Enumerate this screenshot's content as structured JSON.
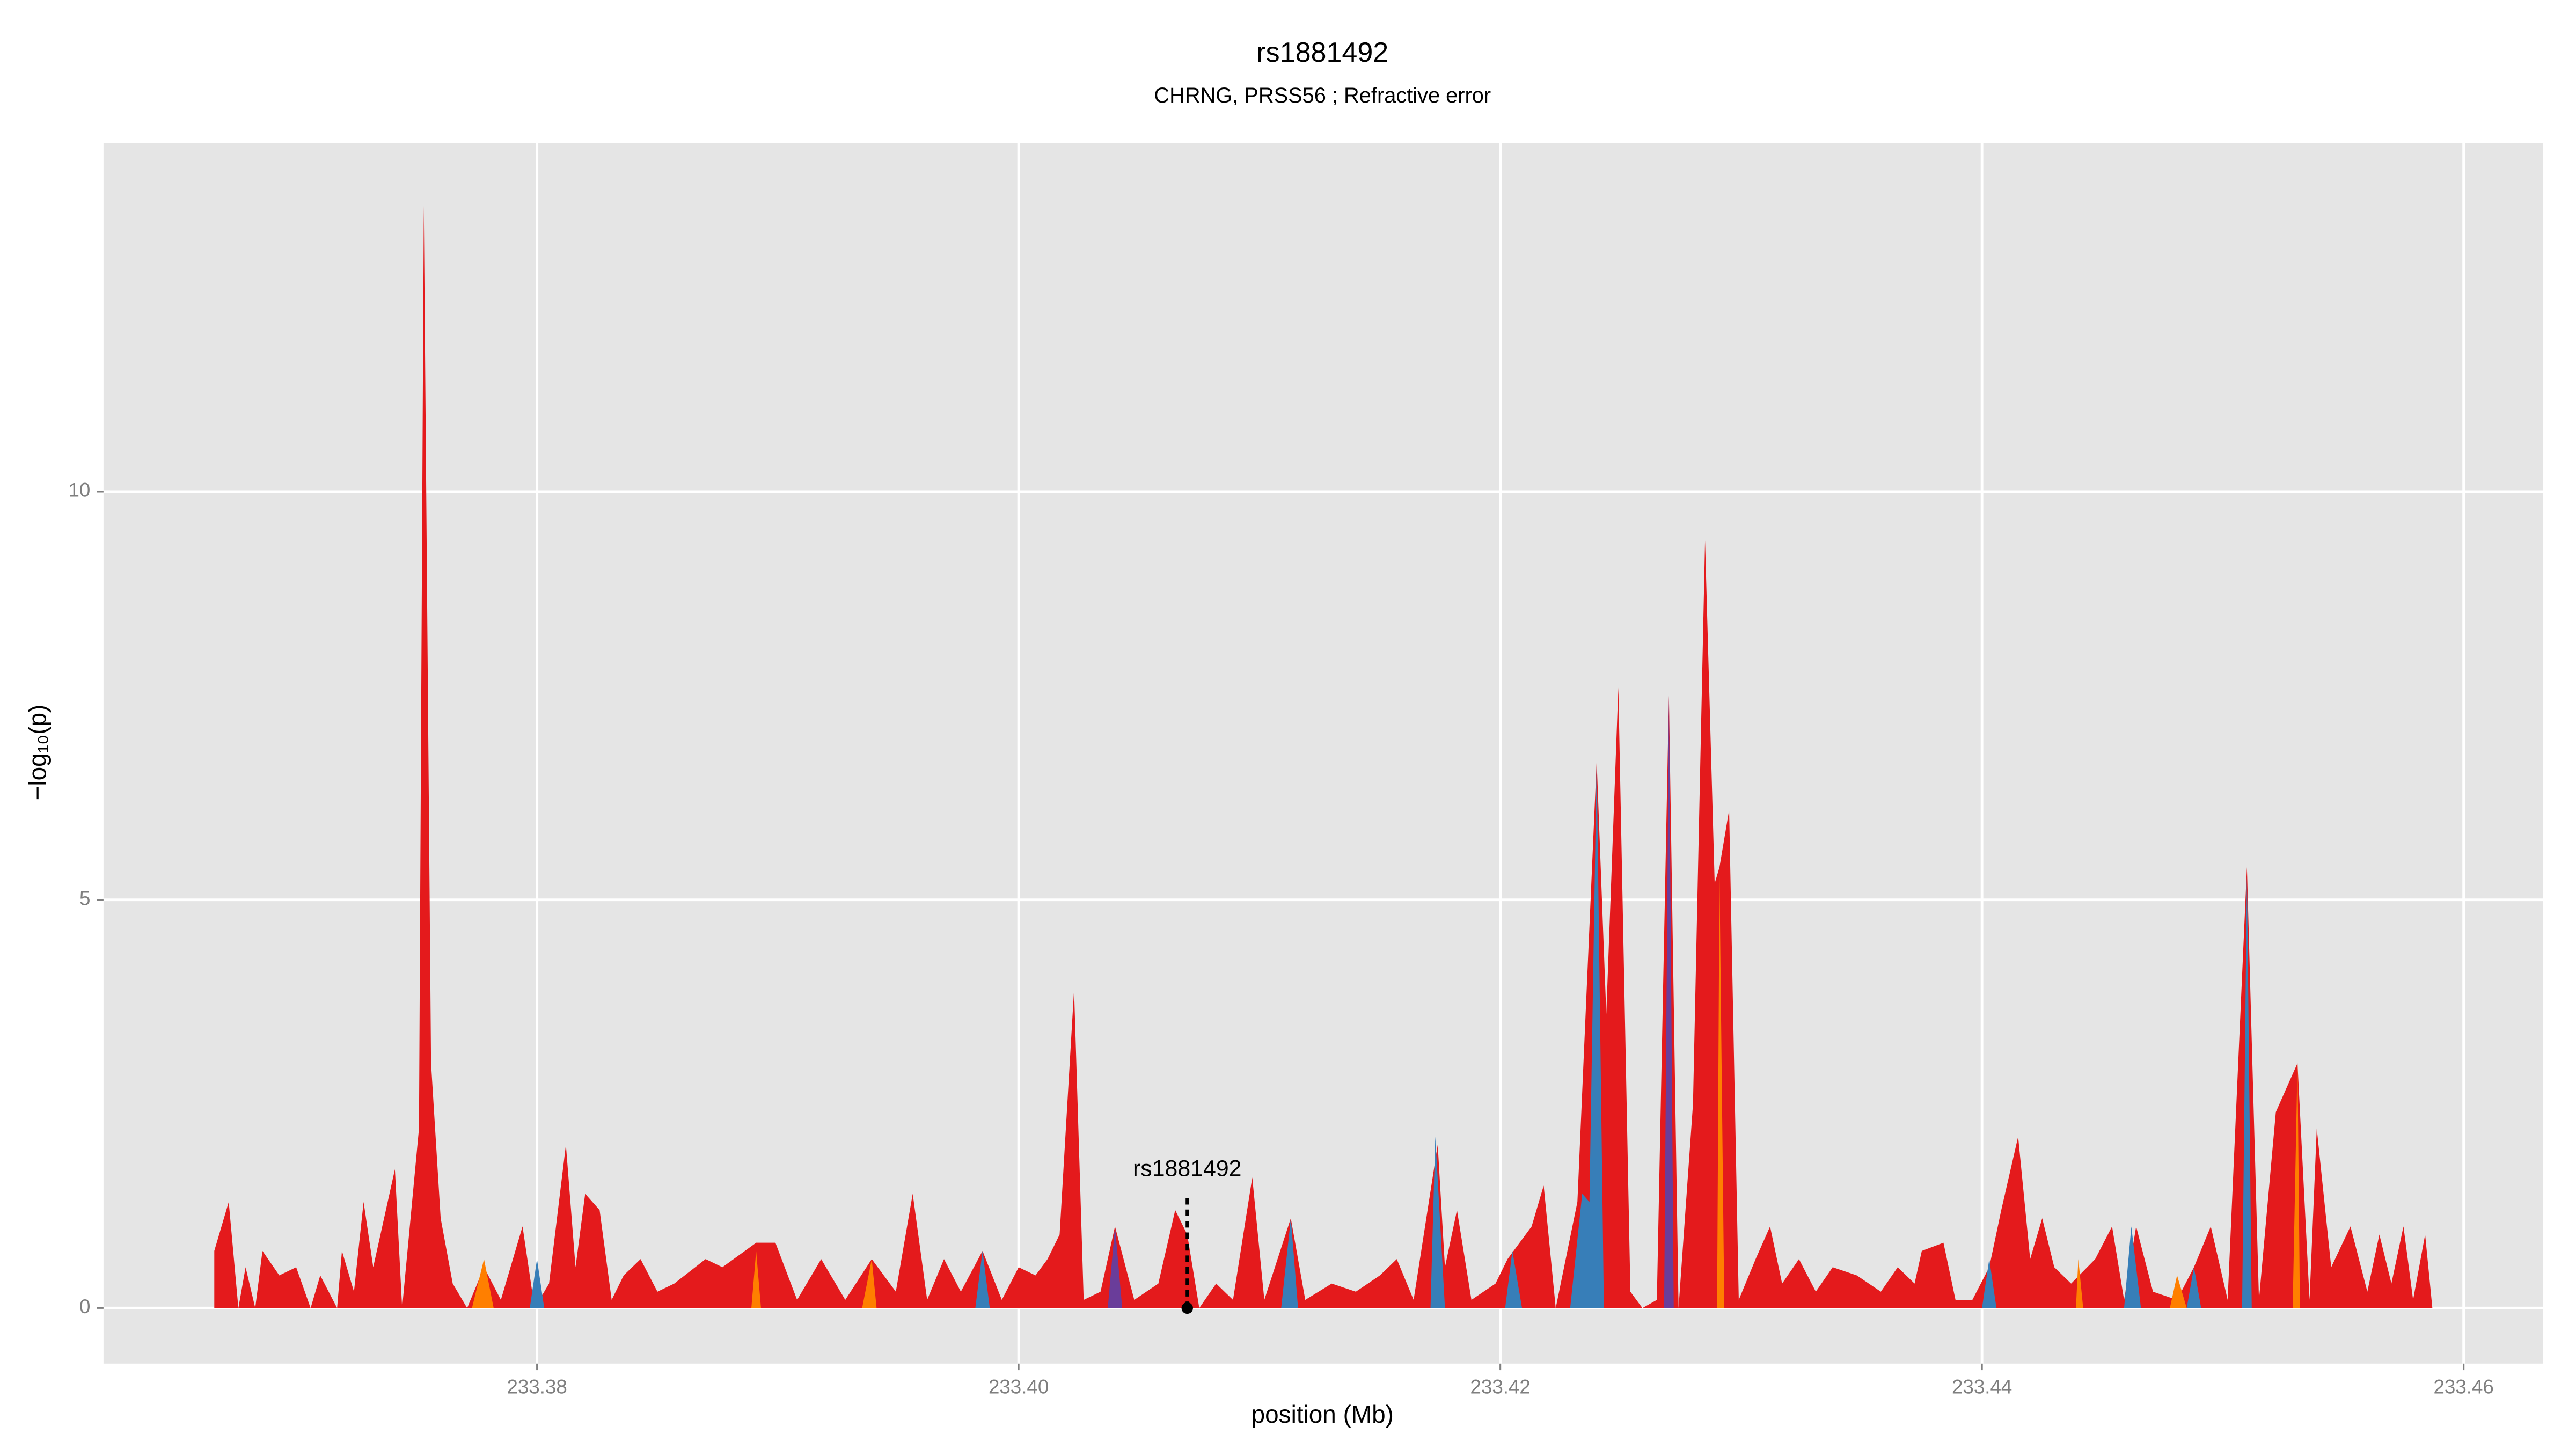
{
  "chart_data": {
    "type": "area",
    "title": "rs1881492",
    "subtitle": "CHRNG, PRSS56 ; Refractive error",
    "x_label": "position (Mb)",
    "y_label": "−log₁₀(p)",
    "xlim": [
      233.362,
      233.4633
    ],
    "ylim": [
      -0.68,
      14.27
    ],
    "xticks": [
      233.38,
      {
        "value": 233.4,
        "label": "233.40"
      },
      233.42,
      233.44,
      233.46
    ],
    "yticks": [
      0,
      5,
      10
    ],
    "grid": true,
    "series": [
      {
        "color": "#e41a1c",
        "x": [
          233.3666,
          233.3672,
          233.3676,
          233.3679,
          233.3683,
          233.3686,
          233.3693,
          233.37,
          233.3706,
          233.371,
          233.3717,
          233.3719,
          233.3724,
          233.3728,
          233.3732,
          233.3741,
          233.3744,
          233.3751,
          233.3753,
          233.3756,
          233.376,
          233.3765,
          233.3771,
          233.3778,
          233.3785,
          233.3794,
          233.3799,
          233.3805,
          233.3812,
          233.3816,
          233.382,
          233.3826,
          233.3831,
          233.3836,
          233.3843,
          233.385,
          233.3857,
          233.387,
          233.3877,
          233.3891,
          233.3899,
          233.3908,
          233.3918,
          233.3928,
          233.3939,
          233.3949,
          233.3956,
          233.3962,
          233.3969,
          233.3976,
          233.3985,
          233.3993,
          233.4,
          233.4007,
          233.4012,
          233.4017,
          233.4023,
          233.4027,
          233.4034,
          233.404,
          233.4048,
          233.4058,
          233.4065,
          233.407,
          233.4075,
          233.4082,
          233.4089,
          233.4097,
          233.4102,
          233.4113,
          233.4119,
          233.413,
          233.414,
          233.415,
          233.4157,
          233.4164,
          233.4174,
          233.4177,
          233.4182,
          233.4188,
          233.4198,
          233.4203,
          233.4213,
          233.4218,
          233.4223,
          233.4232,
          233.424,
          233.4244,
          233.4249,
          233.4254,
          233.4259,
          233.4265,
          233.427,
          233.4274,
          233.428,
          233.4285,
          233.4289,
          233.4291,
          233.4295,
          233.4299,
          233.4306,
          233.4312,
          233.4317,
          233.4324,
          233.4331,
          233.4338,
          233.4348,
          233.4358,
          233.4365,
          233.4372,
          233.4375,
          233.4384,
          233.4389,
          233.4396,
          233.4403,
          233.4408,
          233.4415,
          233.442,
          233.4425,
          233.443,
          233.4437,
          233.4447,
          233.4454,
          233.4459,
          233.4464,
          233.4471,
          233.4481,
          233.4488,
          233.4495,
          233.4502,
          233.451,
          233.4515,
          233.4522,
          233.4531,
          233.4536,
          233.4539,
          233.4545,
          233.4553,
          233.456,
          233.4565,
          233.457,
          233.4575,
          233.4579,
          233.4584,
          233.4587
        ],
        "values": [
          0.7,
          1.3,
          0,
          0.5,
          0,
          0.7,
          0.4,
          0.5,
          0,
          0.4,
          0,
          0.7,
          0.2,
          1.3,
          0.5,
          1.7,
          0,
          2.2,
          13.5,
          3.0,
          1.1,
          0.3,
          0,
          0.5,
          0.1,
          1.0,
          0,
          0.3,
          2.0,
          0.5,
          1.4,
          1.2,
          0.1,
          0.4,
          0.6,
          0.2,
          0.3,
          0.6,
          0.5,
          0.8,
          0.8,
          0.1,
          0.6,
          0.1,
          0.6,
          0.2,
          1.4,
          0.1,
          0.6,
          0.2,
          0.7,
          0.1,
          0.5,
          0.4,
          0.6,
          0.9,
          3.9,
          0.1,
          0.2,
          1.0,
          0.1,
          0.3,
          1.2,
          0.9,
          0,
          0.3,
          0.1,
          1.6,
          0.1,
          1.1,
          0.1,
          0.3,
          0.2,
          0.4,
          0.6,
          0.1,
          2.0,
          0.5,
          1.2,
          0.1,
          0.3,
          0.6,
          1.0,
          1.5,
          0,
          1.3,
          6.7,
          3.6,
          7.6,
          0.2,
          0,
          0.1,
          7.5,
          0,
          2.5,
          9.4,
          5.2,
          5.4,
          6.1,
          0.1,
          0.6,
          1.0,
          0.3,
          0.6,
          0.2,
          0.5,
          0.4,
          0.2,
          0.5,
          0.3,
          0.7,
          0.8,
          0.1,
          0.1,
          0.5,
          1.2,
          2.1,
          0.6,
          1.1,
          0.5,
          0.3,
          0.6,
          1.0,
          0.1,
          1.0,
          0.2,
          0.1,
          0.5,
          1.0,
          0.1,
          5.4,
          0.1,
          2.4,
          3.0,
          0.1,
          2.2,
          0.5,
          1.0,
          0.2,
          0.9,
          0.3,
          1.0,
          0.1,
          0.9,
          0
        ]
      },
      {
        "color": "#377eb8",
        "x": [
          233.3797,
          233.38,
          233.3803,
          null,
          233.3982,
          233.3985,
          233.3988,
          null,
          233.4109,
          233.4113,
          233.4116,
          null,
          233.4171,
          233.4173,
          233.4177,
          null,
          233.4202,
          233.4205,
          233.4209,
          null,
          233.4229,
          233.4234,
          233.4237,
          233.424,
          233.4243,
          null,
          233.44,
          233.4403,
          233.4406,
          null,
          233.4459,
          233.4462,
          233.4466,
          null,
          233.4485,
          233.4488,
          233.4491,
          null,
          233.4508,
          233.451,
          233.4512
        ],
        "values": [
          0,
          0.6,
          0,
          null,
          0,
          0.7,
          0,
          null,
          0,
          1.1,
          0,
          null,
          0,
          2.1,
          0,
          null,
          0,
          0.7,
          0,
          null,
          0,
          1.4,
          1.3,
          6.7,
          0,
          null,
          0,
          0.6,
          0,
          null,
          0,
          1.0,
          0,
          null,
          0,
          0.5,
          0,
          null,
          0,
          5.3,
          0
        ]
      },
      {
        "color": "#ff7f00",
        "x": [
          233.3773,
          233.3778,
          233.3782,
          null,
          233.3889,
          233.3891,
          233.3893,
          null,
          233.3935,
          233.3939,
          233.3941,
          null,
          233.429,
          233.4291,
          233.4293,
          null,
          233.4439,
          233.444,
          233.4442,
          null,
          233.4478,
          233.4481,
          233.4485,
          null,
          233.4529,
          233.4531,
          233.4532
        ],
        "values": [
          0,
          0.6,
          0,
          null,
          0,
          0.7,
          0,
          null,
          0,
          0.6,
          0,
          null,
          0,
          5.3,
          0,
          null,
          0,
          0.6,
          0,
          null,
          0,
          0.4,
          0,
          null,
          0,
          3.0,
          0
        ]
      },
      {
        "color": "#6a3d9a",
        "x": [
          233.4037,
          233.404,
          233.4043,
          null,
          233.4268,
          233.427,
          233.4272
        ],
        "values": [
          0,
          1.0,
          0,
          null,
          0,
          7.5,
          0
        ]
      }
    ],
    "highlight": {
      "label": "rs1881492",
      "x": 233.407,
      "y": 0
    }
  }
}
